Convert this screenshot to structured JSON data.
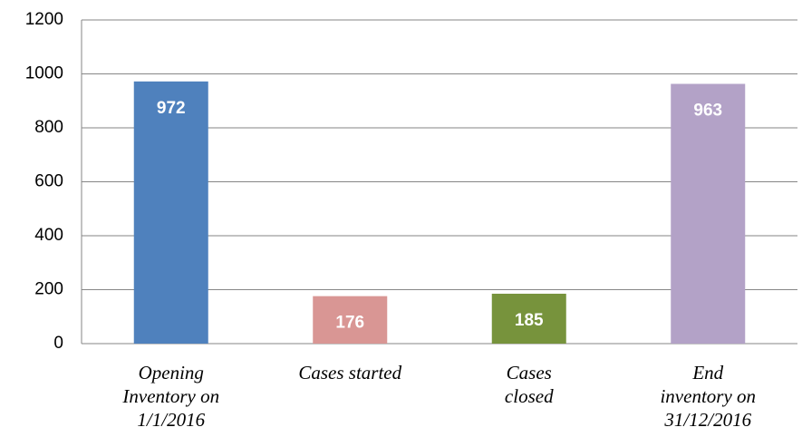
{
  "chart_data": {
    "type": "bar",
    "categories": [
      "Opening\nInventory on\n1/1/2016",
      "Cases started",
      "Cases\nclosed",
      "End\ninventory on\n31/12/2016"
    ],
    "values": [
      972,
      176,
      185,
      963
    ],
    "colors": [
      "#4f81bd",
      "#d99694",
      "#77933c",
      "#b3a2c7"
    ],
    "ylim": [
      0,
      1200
    ],
    "yticks": [
      0,
      200,
      400,
      600,
      800,
      1000,
      1200
    ],
    "grid": true
  }
}
